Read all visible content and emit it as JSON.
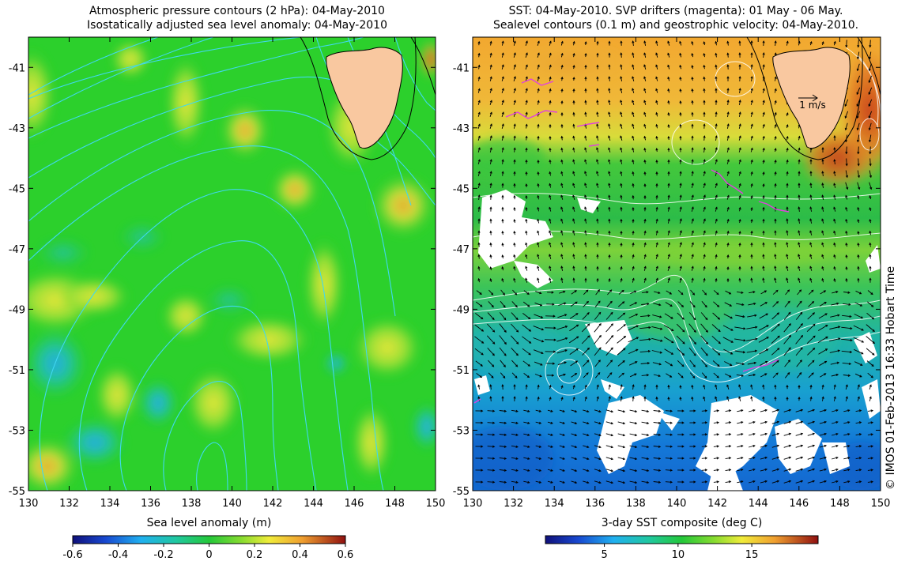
{
  "left_panel": {
    "title_line1": "Atmospheric pressure contours (2 hPa): 04-May-2010",
    "title_line2": "Isostatically adjusted sea level anomaly: 04-May-2010",
    "colorbar_label": "Sea level anomaly (m)",
    "colorbar_ticks": [
      "-0.6",
      "-0.4",
      "-0.2",
      "0",
      "0.2",
      "0.4",
      "0.6"
    ],
    "colorbar_range": [
      -0.6,
      0.6
    ]
  },
  "right_panel": {
    "title_line1": "SST: 04-May-2010. SVP drifters (magenta): 01 May - 06 May.",
    "title_line2": "Sealevel contours (0.1 m) and geostrophic velocity: 04-May-2010.",
    "colorbar_label": "3-day SST composite (deg C)",
    "colorbar_ticks": [
      "5",
      "10",
      "15"
    ],
    "colorbar_range": [
      1,
      19.5
    ],
    "scale_arrow_label": "1 m/s"
  },
  "map_axes": {
    "x_ticks": [
      "130",
      "132",
      "134",
      "136",
      "138",
      "140",
      "142",
      "144",
      "146",
      "148",
      "150"
    ],
    "y_ticks": [
      "-41",
      "-43",
      "-45",
      "-47",
      "-49",
      "-51",
      "-53",
      "-55"
    ],
    "lon_range": [
      130,
      150
    ],
    "lat_range": [
      -55,
      -40
    ]
  },
  "credit": "© IMOS 01-Feb-2013 16:33 Hobart Time",
  "colors": {
    "land": "#f9c8a0",
    "pressure_contours": "#40d8f0",
    "sealevel_contours": "#ffffff",
    "drifters": "#e040e0",
    "velocity_arrows": "#000000"
  }
}
